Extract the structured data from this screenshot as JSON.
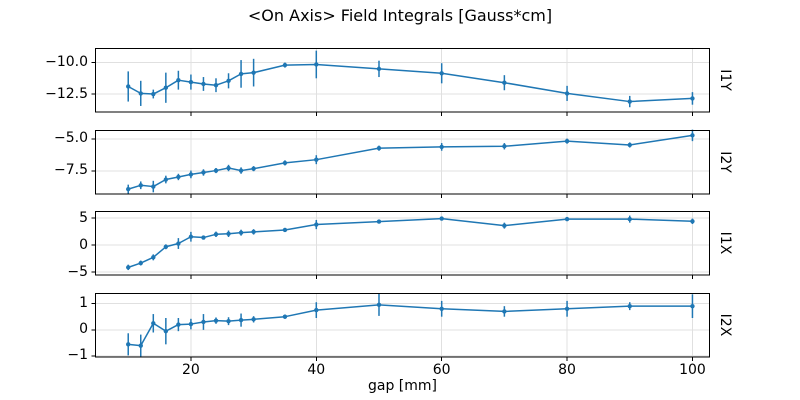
{
  "title": "<On Axis> Field Integrals [Gauss*cm]",
  "chart_data": {
    "type": "line",
    "title": "<On Axis> Field Integrals [Gauss*cm]",
    "xlabel": "gap [mm]",
    "grid": true,
    "legend": "none",
    "line_color": "#1f77b4",
    "grid_color": "#e0e0e0",
    "xlim": [
      4.7,
      102.8
    ],
    "x_ticks": [
      20,
      40,
      60,
      80,
      100
    ],
    "x_tick_labels": [
      "20",
      "40",
      "60",
      "80",
      "100"
    ],
    "x": [
      10,
      12,
      14,
      16,
      18,
      20,
      22,
      24,
      26,
      28,
      30,
      35,
      40,
      50,
      60,
      70,
      80,
      90,
      100
    ],
    "subplots": [
      {
        "ylabel": "I1Y",
        "ylim": [
          -13.97,
          -8.84
        ],
        "y_ticks": [
          -10.0,
          -12.5
        ],
        "y_tick_labels": [
          "−10.0",
          "−12.5"
        ],
        "values": [
          -11.9,
          -12.45,
          -12.5,
          -12.0,
          -11.4,
          -11.55,
          -11.7,
          -11.8,
          -11.45,
          -10.9,
          -10.8,
          -10.2,
          -10.15,
          -10.5,
          -10.85,
          -11.6,
          -12.45,
          -13.1,
          -12.85
        ],
        "errors": [
          1.2,
          1.0,
          0.35,
          1.2,
          0.75,
          0.6,
          0.55,
          0.55,
          0.6,
          1.1,
          1.1,
          0.2,
          1.1,
          0.65,
          0.8,
          0.6,
          0.6,
          0.45,
          0.5
        ]
      },
      {
        "ylabel": "I2Y",
        "ylim": [
          -9.32,
          -4.28
        ],
        "y_ticks": [
          -5.0,
          -7.5
        ],
        "y_tick_labels": [
          "−5.0",
          "−7.5"
        ],
        "values": [
          -8.9,
          -8.6,
          -8.7,
          -8.15,
          -7.95,
          -7.75,
          -7.6,
          -7.45,
          -7.25,
          -7.45,
          -7.3,
          -6.85,
          -6.6,
          -5.7,
          -5.6,
          -5.55,
          -5.15,
          -5.45,
          -4.7
        ],
        "errors": [
          0.35,
          0.3,
          0.45,
          0.3,
          0.25,
          0.3,
          0.25,
          0.2,
          0.25,
          0.25,
          0.2,
          0.2,
          0.35,
          0.2,
          0.3,
          0.25,
          0.2,
          0.2,
          0.45
        ]
      },
      {
        "ylabel": "I1X",
        "ylim": [
          -5.6,
          6.3
        ],
        "y_ticks": [
          5,
          0,
          -5
        ],
        "y_tick_labels": [
          "5",
          "0",
          "−5"
        ],
        "values": [
          -4.1,
          -3.3,
          -2.25,
          -0.3,
          0.3,
          1.55,
          1.4,
          2.0,
          2.1,
          2.3,
          2.45,
          2.8,
          3.8,
          4.35,
          4.9,
          3.6,
          4.8,
          4.8,
          4.4
        ],
        "errors": [
          0.5,
          0.45,
          0.55,
          0.45,
          1.0,
          0.9,
          0.35,
          0.5,
          0.6,
          0.55,
          0.5,
          0.2,
          0.85,
          0.3,
          0.3,
          0.55,
          0.2,
          0.65,
          0.5
        ]
      },
      {
        "ylabel": "I2X",
        "ylim": [
          -1.05,
          1.4
        ],
        "y_ticks": [
          1,
          0,
          -1
        ],
        "y_tick_labels": [
          "1",
          "0",
          "−1"
        ],
        "values": [
          -0.55,
          -0.6,
          0.25,
          -0.05,
          0.2,
          0.22,
          0.3,
          0.35,
          0.33,
          0.37,
          0.4,
          0.5,
          0.75,
          0.95,
          0.8,
          0.7,
          0.8,
          0.9,
          0.9
        ],
        "errors": [
          0.42,
          0.42,
          0.35,
          0.5,
          0.25,
          0.2,
          0.3,
          0.12,
          0.15,
          0.25,
          0.12,
          0.08,
          0.3,
          0.42,
          0.3,
          0.2,
          0.3,
          0.15,
          0.45
        ]
      }
    ]
  }
}
